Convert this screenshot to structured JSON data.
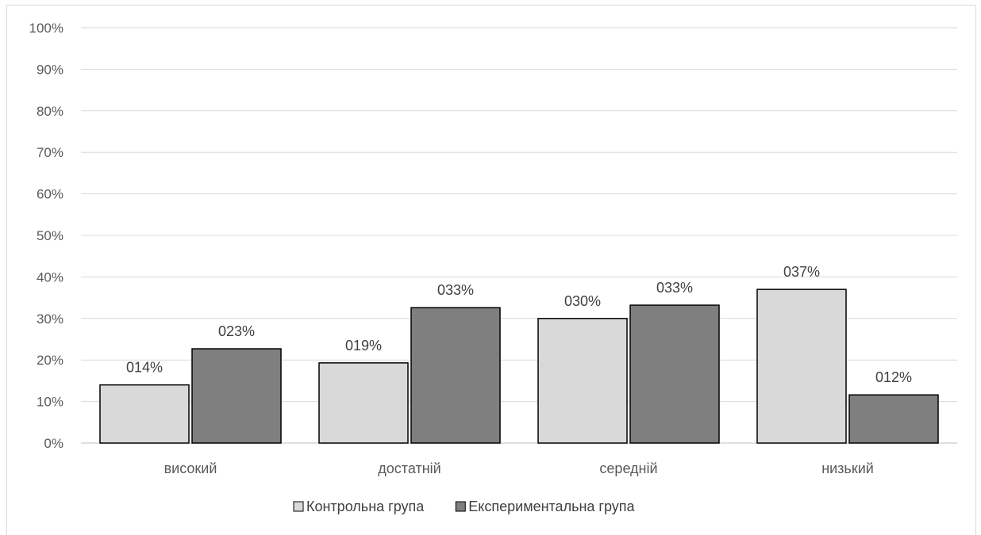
{
  "chart_data": {
    "type": "bar",
    "title": "",
    "xlabel": "",
    "ylabel": "",
    "categories": [
      "високий",
      "достатній",
      "середній",
      "низький"
    ],
    "series": [
      {
        "name": "Контрольна група",
        "values": [
          14,
          19.3,
          30,
          37
        ],
        "labels": [
          "014%",
          "019%",
          "030%",
          "037%"
        ],
        "color": "#d9d9d9"
      },
      {
        "name": "Експериментальна група",
        "values": [
          22.7,
          32.6,
          33.2,
          11.6
        ],
        "labels": [
          "023%",
          "033%",
          "033%",
          "012%"
        ],
        "color": "#7f7f7f"
      }
    ],
    "ylim": [
      0,
      100
    ],
    "yticks": [
      "0%",
      "10%",
      "20%",
      "30%",
      "40%",
      "50%",
      "60%",
      "70%",
      "80%",
      "90%",
      "100%"
    ],
    "grid": true,
    "legend_position": "bottom"
  }
}
